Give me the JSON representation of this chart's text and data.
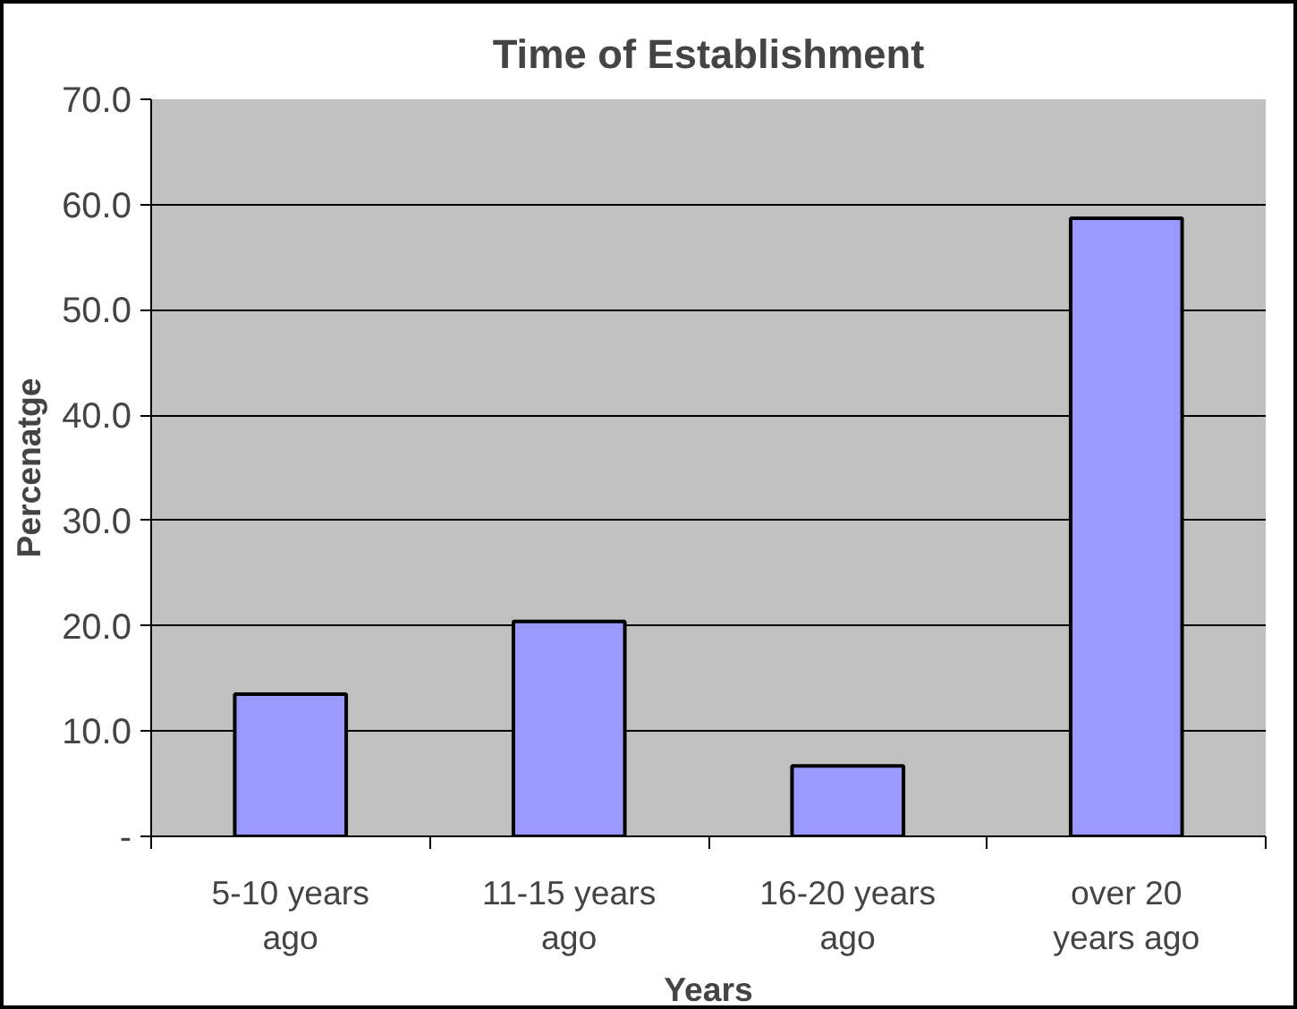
{
  "chart_data": {
    "type": "bar",
    "title": "Time of Establishment",
    "xlabel": "Years",
    "ylabel": "Percenatge",
    "categories": [
      "5-10 years ago",
      "11-15 years ago",
      "16-20 years ago",
      "over 20 years ago"
    ],
    "values": [
      13.5,
      20.4,
      6.7,
      58.7
    ],
    "color": "#9999ff",
    "ylim": [
      0,
      70
    ],
    "yticks": [
      {
        "value": 0,
        "label": "-"
      },
      {
        "value": 10,
        "label": "10.0"
      },
      {
        "value": 20,
        "label": "20.0"
      },
      {
        "value": 30,
        "label": "30.0"
      },
      {
        "value": 40,
        "label": "40.0"
      },
      {
        "value": 50,
        "label": "50.0"
      },
      {
        "value": 60,
        "label": "60.0"
      },
      {
        "value": 70,
        "label": "70.0"
      }
    ],
    "grid": "y",
    "legend": false
  }
}
